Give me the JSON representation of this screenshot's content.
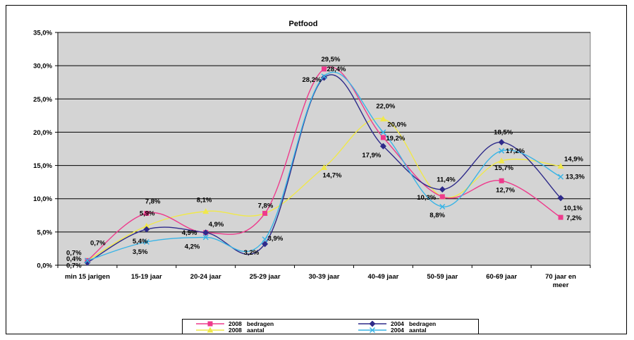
{
  "chart_data": {
    "type": "line",
    "title": "Petfood",
    "xlabel": "",
    "ylabel": "",
    "ylim": [
      0,
      35
    ],
    "y_ticks": [
      "0,0%",
      "5,0%",
      "10,0%",
      "15,0%",
      "20,0%",
      "25,0%",
      "30,0%",
      "35,0%"
    ],
    "grid": true,
    "legend_position": "bottom",
    "plot_background": "#d4d4d4",
    "categories": [
      "min 15 jarigen",
      "15-19 jaar",
      "20-24 jaar",
      "25-29 jaar",
      "30-39 jaar",
      "40-49 jaar",
      "50-59 jaar",
      "60-69 jaar",
      "70 jaar en meer"
    ],
    "series": [
      {
        "name": "2008   bedragen",
        "color": "#ee3a8c",
        "marker": "square",
        "values": [
          0.7,
          7.8,
          4.9,
          7.8,
          29.5,
          19.2,
          10.3,
          12.7,
          7.2
        ],
        "labels": [
          "0,7%",
          "7,8%",
          "4,9%",
          "7,8%",
          "29,5%",
          "19,2%",
          "10,3%",
          "12,7%",
          "7,2%"
        ]
      },
      {
        "name": "2004   bedragen",
        "color": "#2e2a8a",
        "marker": "diamond",
        "values": [
          0.4,
          5.4,
          4.9,
          3.2,
          28.2,
          17.9,
          11.4,
          18.5,
          10.1
        ],
        "labels": [
          "0,4%",
          "5,4%",
          "4,9%",
          "3,2%",
          "28,2%",
          "17,9%",
          "11,4%",
          "18,5%",
          "10,1%"
        ]
      },
      {
        "name": "2008   aantal",
        "color": "#f0e84a",
        "marker": "triangle",
        "values": [
          0.7,
          5.9,
          8.1,
          7.8,
          14.7,
          22.0,
          10.3,
          15.7,
          14.9
        ],
        "labels": [
          "0,7%",
          "5,9%",
          "8,1%",
          "",
          "14,7%",
          "22,0%",
          "",
          "15,7%",
          "14,9%"
        ]
      },
      {
        "name": "2004   aantal",
        "color": "#39b4e6",
        "marker": "x",
        "values": [
          0.7,
          3.5,
          4.2,
          3.9,
          28.4,
          20.0,
          8.8,
          17.2,
          13.3
        ],
        "labels": [
          "0,7%",
          "3,5%",
          "4,2%",
          "3,9%",
          "28,4%",
          "20,0%",
          "8,8%",
          "17,2%",
          "13,3%"
        ]
      }
    ]
  }
}
